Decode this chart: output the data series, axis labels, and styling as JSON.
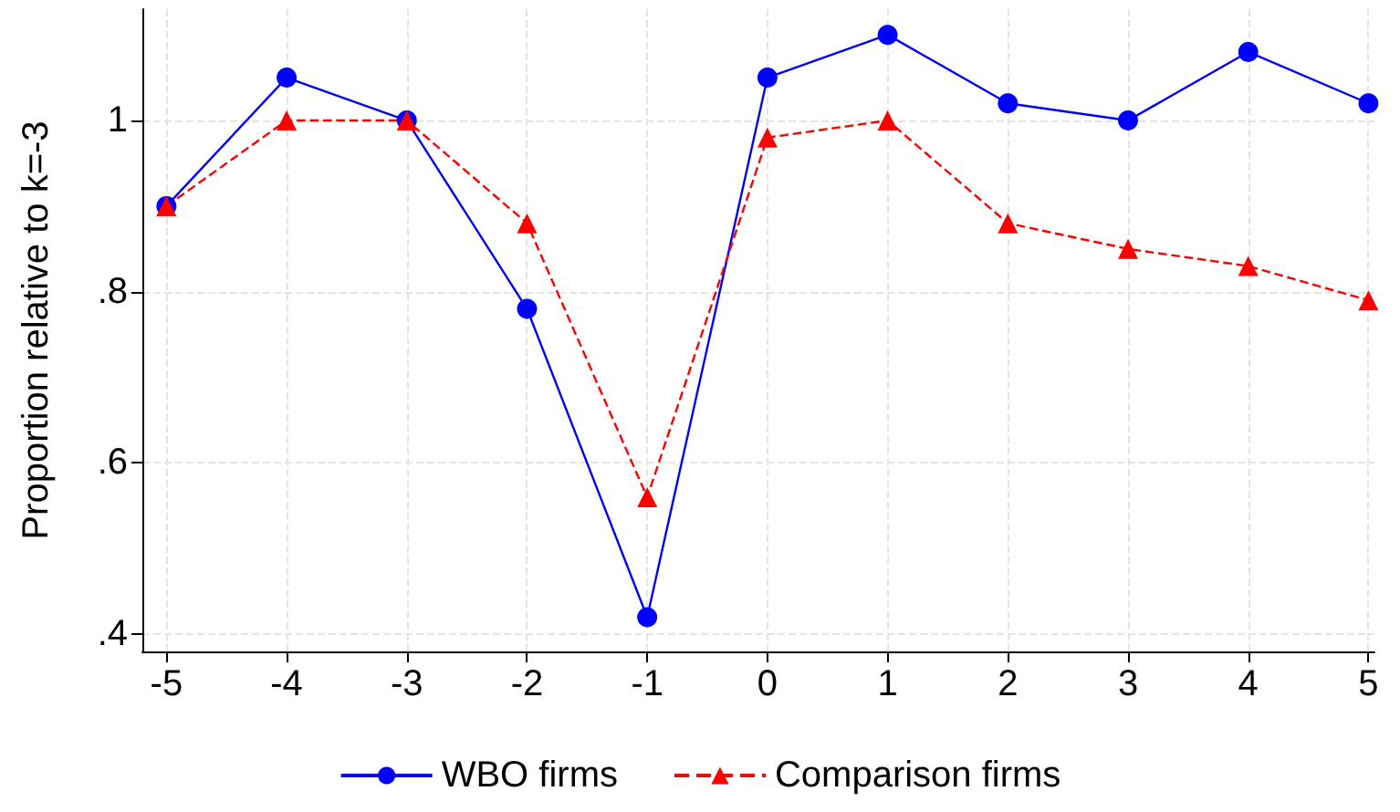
{
  "chart_data": {
    "type": "line",
    "ylabel": "Proportion relative to k=-3",
    "x": [
      -5,
      -4,
      -3,
      -2,
      -1,
      0,
      1,
      2,
      3,
      4,
      5
    ],
    "series": [
      {
        "name": "WBO firms",
        "color": "#0000ff",
        "marker": "circle",
        "line_style": "solid",
        "values": [
          0.9,
          1.05,
          1.0,
          0.78,
          0.42,
          1.05,
          1.1,
          1.02,
          1.0,
          1.08,
          1.02
        ]
      },
      {
        "name": "Comparison firms",
        "color": "#ff0000",
        "marker": "triangle",
        "line_style": "dashed",
        "values": [
          0.9,
          1.0,
          1.0,
          0.88,
          0.56,
          0.98,
          1.0,
          0.88,
          0.85,
          0.83,
          0.79
        ]
      }
    ],
    "xlim": [
      -5.2,
      5.05
    ],
    "xticks": [
      -5,
      -4,
      -3,
      -2,
      -1,
      0,
      1,
      2,
      3,
      4,
      5
    ],
    "ylim": [
      0.38,
      1.13
    ],
    "yticks": [
      {
        "value": 0.4,
        "label": ".4"
      },
      {
        "value": 0.6,
        "label": ".6"
      },
      {
        "value": 0.8,
        "label": ".8"
      },
      {
        "value": 1,
        "label": "1"
      }
    ],
    "grid": true,
    "legend": "bottom"
  }
}
